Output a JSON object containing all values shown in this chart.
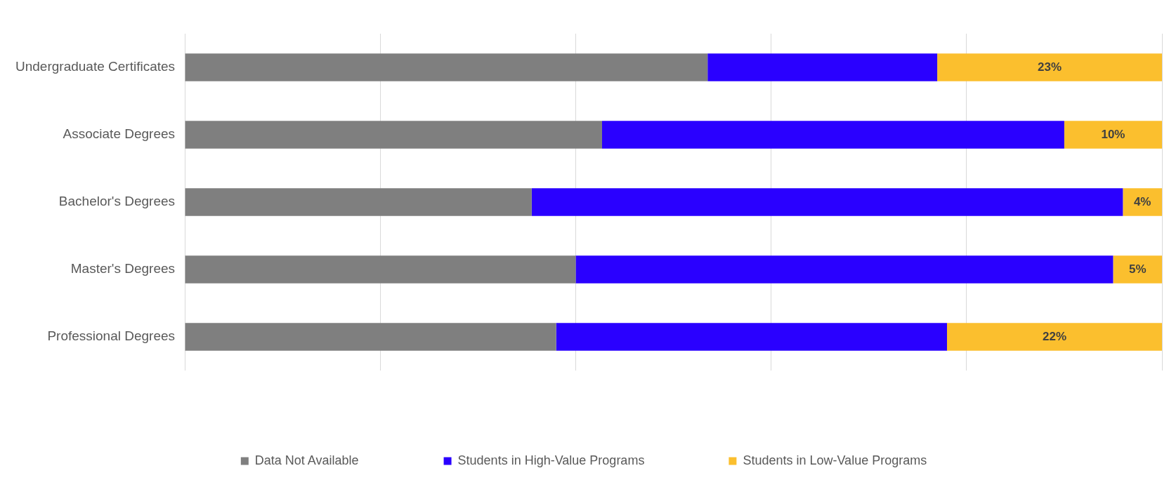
{
  "chart_data": {
    "type": "bar",
    "orientation": "horizontal",
    "stacked": true,
    "categories": [
      "Undergraduate Certificates",
      "Associate Degrees",
      "Bachelor's Degrees",
      "Master's Degrees",
      "Professional Degrees"
    ],
    "series": [
      {
        "name": "Data Not Available",
        "color": "#7f7f7f",
        "values": [
          53.5,
          42.7,
          35.5,
          40,
          38
        ]
      },
      {
        "name": "Students in High-Value Programs",
        "color": "#2a00ff",
        "values": [
          23.5,
          47.3,
          60.5,
          55,
          40
        ]
      },
      {
        "name": "Students in Low-Value Programs",
        "color": "#fbbf2e",
        "values": [
          23,
          10,
          4,
          5,
          22
        ],
        "value_labels": [
          "23%",
          "10%",
          "4%",
          "5%",
          "22%"
        ]
      }
    ],
    "xlim": [
      0,
      100
    ],
    "xticks": [
      {
        "value": 0,
        "label": null
      },
      {
        "value": 20,
        "label": null
      },
      {
        "value": 40,
        "label": null
      },
      {
        "value": 60,
        "label": null
      },
      {
        "value": 80,
        "label": null
      },
      {
        "value": 100,
        "label": null
      }
    ],
    "tick_labels": "y",
    "grid": "x",
    "legend": "bottom"
  }
}
